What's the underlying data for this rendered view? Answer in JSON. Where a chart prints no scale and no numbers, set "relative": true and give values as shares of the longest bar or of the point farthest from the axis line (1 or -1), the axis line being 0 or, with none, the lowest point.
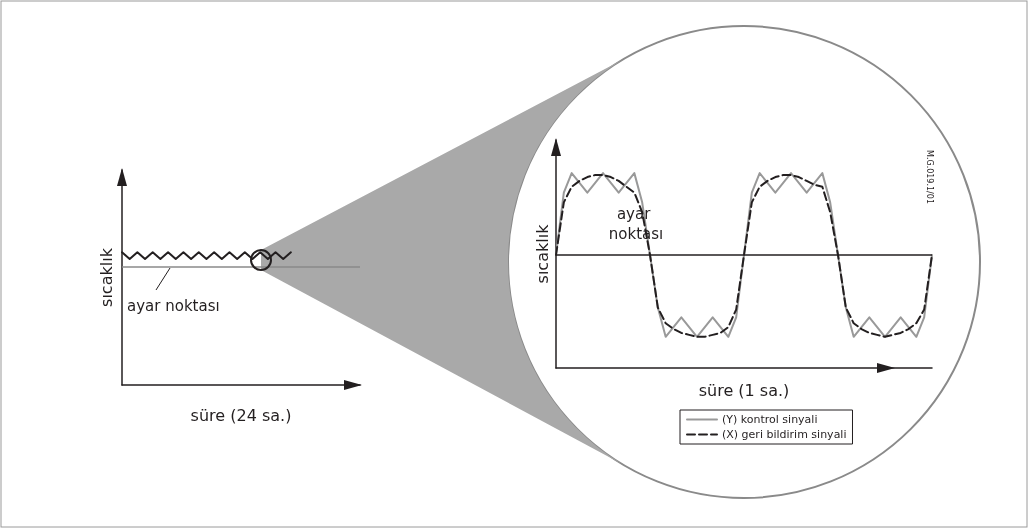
{
  "chart_data": [
    {
      "type": "line",
      "xlabel": "süre (24 sa.)",
      "ylabel": "sıcaklık",
      "relative": true,
      "legend": false,
      "marker": "none",
      "line_style": "solid",
      "grid": false,
      "categories": [
        null,
        null,
        null,
        null,
        null,
        null,
        null,
        null,
        null,
        null,
        null,
        null,
        null,
        null,
        null,
        null,
        null,
        null,
        null,
        null,
        null,
        null,
        null,
        null,
        null,
        null,
        null,
        null,
        null,
        null,
        null,
        null
      ],
      "series": [
        {
          "color": "#231f20",
          "values": [
            1,
            0.95,
            1,
            0.95,
            1,
            0.95,
            1,
            0.95,
            1,
            0.95,
            1,
            0.95,
            1,
            0.95,
            1,
            0.95,
            1,
            0.95,
            1,
            0.95,
            1,
            0.95,
            1,
            null,
            null,
            null,
            null,
            null,
            null,
            null,
            null,
            null
          ]
        }
      ],
      "ref_lines": [
        {
          "axis": "y",
          "value": 0.89,
          "label": "ayar noktası",
          "color": "#8a8a8a"
        }
      ]
    },
    {
      "type": "line",
      "xlabel": "süre (1 sa.)",
      "ylabel": "sıcaklık",
      "relative": true,
      "legend": "bottom",
      "grid": false,
      "marker": "none",
      "categories": [
        null,
        null,
        null,
        null,
        null,
        null,
        null,
        null,
        null,
        null,
        null,
        null,
        null,
        null,
        null,
        null,
        null,
        null,
        null,
        null,
        null,
        null,
        null,
        null,
        null,
        null,
        null,
        null,
        null,
        null,
        null,
        null,
        null,
        null,
        null,
        null,
        null,
        null,
        null,
        null,
        null,
        null,
        null,
        null,
        null,
        null,
        null,
        null,
        null
      ],
      "series": [
        {
          "name": "(Y) kontrol sinyali",
          "color": "#999999",
          "line_style": "solid",
          "values": [
            0.58,
            0.9,
            1,
            0.95,
            0.9,
            0.95,
            1,
            0.95,
            0.9,
            0.95,
            1,
            0.85,
            0.58,
            0.31,
            0.16,
            0.21,
            0.26,
            0.21,
            0.16,
            0.21,
            0.26,
            0.21,
            0.16,
            0.26,
            0.58,
            0.9,
            1,
            0.95,
            0.9,
            0.95,
            1,
            0.95,
            0.9,
            0.95,
            1,
            0.85,
            0.58,
            0.31,
            0.16,
            0.21,
            0.26,
            0.21,
            0.16,
            0.21,
            0.26,
            0.21,
            0.16,
            0.26,
            0.58
          ]
        },
        {
          "name": "(X) geri bildirim sinyali",
          "color": "#231f20",
          "line_style": "dashed",
          "values": [
            0.58,
            0.85,
            0.93,
            0.96,
            0.98,
            0.99,
            0.99,
            0.98,
            0.96,
            0.93,
            0.9,
            0.8,
            0.58,
            0.31,
            0.23,
            0.2,
            0.18,
            0.17,
            0.16,
            0.16,
            0.17,
            0.18,
            0.21,
            0.3,
            0.58,
            0.85,
            0.93,
            0.96,
            0.98,
            0.99,
            0.99,
            0.98,
            0.96,
            0.94,
            0.93,
            0.8,
            0.58,
            0.31,
            0.23,
            0.2,
            0.18,
            0.17,
            0.16,
            0.17,
            0.18,
            0.2,
            0.23,
            0.3,
            0.58
          ]
        }
      ],
      "ref_lines": [
        {
          "axis": "y",
          "value": 0.58,
          "label": "ayar noktası",
          "color": "#231f20"
        }
      ],
      "annotations": [
        "M.G.019.1/01"
      ]
    }
  ]
}
